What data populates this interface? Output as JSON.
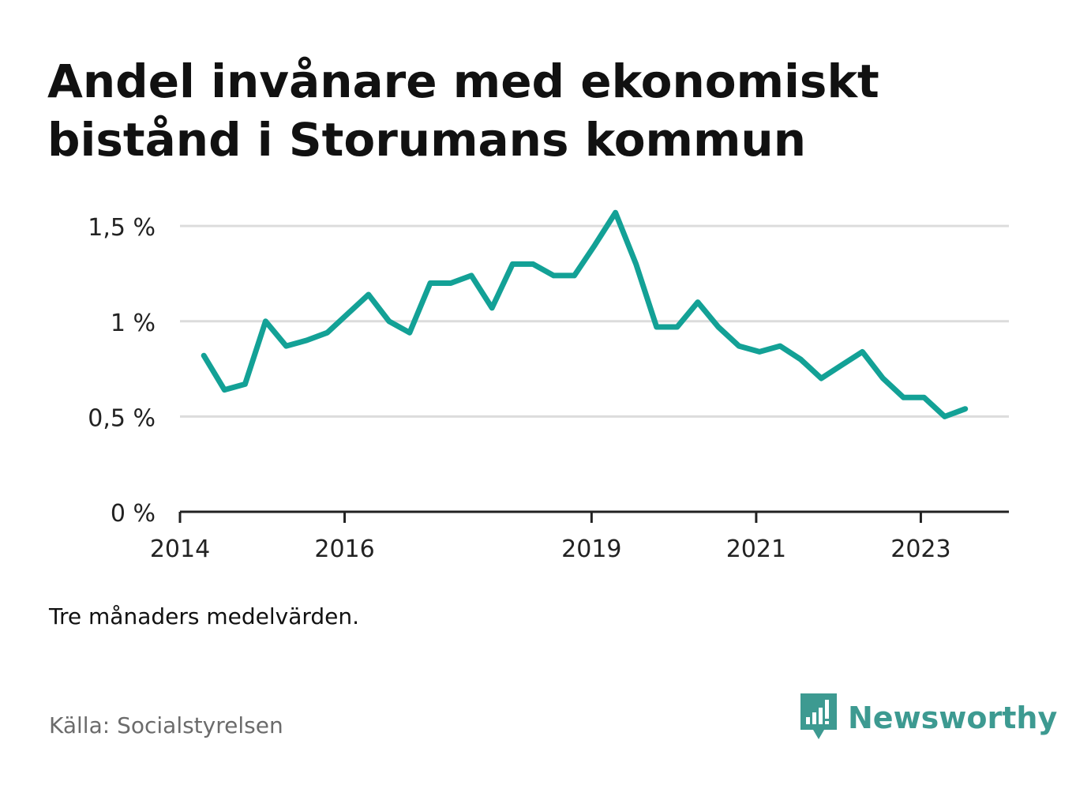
{
  "title": "Andel invånare med ekonomiskt bistånd i Storumans kommun",
  "note": "Tre månaders medelvärden.",
  "source": "Källa: Socialstyrelsen",
  "brand": {
    "name": "Newsworthy",
    "icon": "newsworthy-logo-icon",
    "color": "#3d9a91"
  },
  "chart_data": {
    "type": "line",
    "color": "#13a196",
    "x_ticks": [
      "2014",
      "2016",
      "2019",
      "2021",
      "2023"
    ],
    "x_tick_values": [
      2014.0,
      2016.0,
      2019.0,
      2021.0,
      2023.0
    ],
    "y_ticks": [
      "0 %",
      "0,5 %",
      "1 %",
      "1,5 %"
    ],
    "y_tick_values": [
      0,
      0.5,
      1.0,
      1.5
    ],
    "ylim": [
      0,
      1.6
    ],
    "xlim": [
      2014.0,
      2024.07
    ],
    "grid": true,
    "series": [
      {
        "x": [
          2014.29,
          2014.54,
          2014.79,
          2015.04,
          2015.29,
          2015.54,
          2015.79,
          2016.04,
          2016.29,
          2016.54,
          2016.79,
          2017.04,
          2017.29,
          2017.54,
          2017.79,
          2018.04,
          2018.29,
          2018.54,
          2018.79,
          2019.04,
          2019.29,
          2019.54,
          2019.79,
          2020.04,
          2020.29,
          2020.54,
          2020.79,
          2021.04,
          2021.29,
          2021.54,
          2021.79,
          2022.04,
          2022.29,
          2022.54,
          2022.79,
          2023.04,
          2023.29,
          2023.54
        ],
        "y": [
          0.82,
          0.64,
          0.67,
          1.0,
          0.87,
          0.9,
          0.94,
          1.04,
          1.14,
          1.0,
          0.94,
          1.2,
          1.2,
          1.24,
          1.07,
          1.3,
          1.3,
          1.24,
          1.24,
          1.4,
          1.57,
          1.3,
          0.97,
          0.97,
          1.1,
          0.97,
          0.87,
          0.84,
          0.87,
          0.8,
          0.7,
          0.77,
          0.84,
          0.7,
          0.6,
          0.6,
          0.5,
          0.54
        ]
      }
    ]
  }
}
